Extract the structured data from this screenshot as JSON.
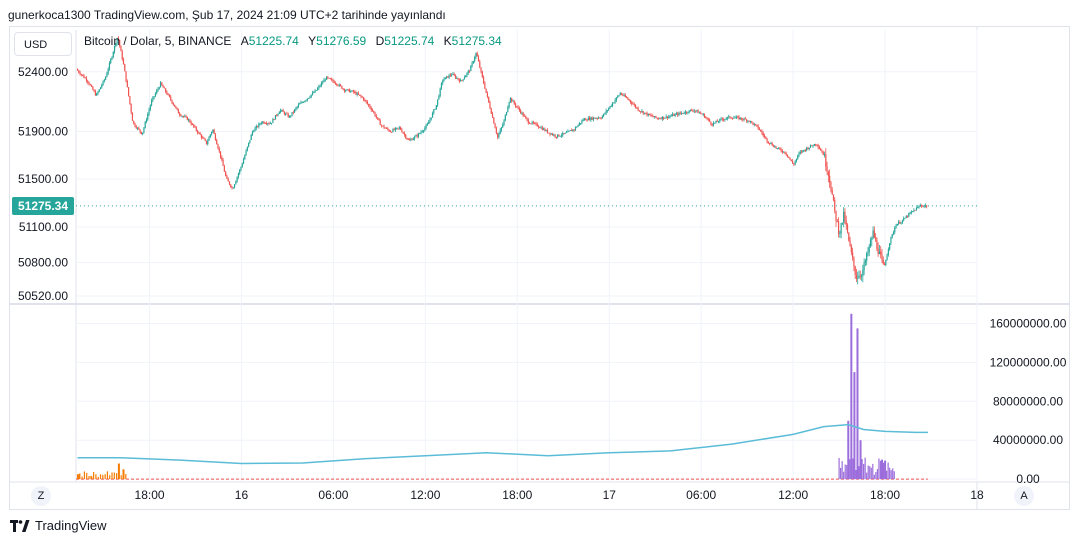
{
  "header": {
    "published_text": "gunerkoca1300 TradingView.com, Şub 17, 2024 21:09 UTC+2 tarihinde yayınlandı"
  },
  "toolbar": {
    "currency_label": "USD",
    "scale_z": "Z",
    "scale_auto": "A"
  },
  "legend": {
    "symbol": "Bitcoin / Dolar, 5, BINANCE",
    "open_label": "A",
    "open_value": "51225.74",
    "high_label": "Y",
    "high_value": "51276.59",
    "low_label": "D",
    "low_value": "51225.74",
    "close_label": "K",
    "close_value": "51275.34"
  },
  "footer": {
    "brand": "TradingView"
  },
  "colors": {
    "up": "#26a69a",
    "down": "#ef5350",
    "volume_ma": "#5bbcd8",
    "volume": "#9c6ddc",
    "volume_early": "#f57c00",
    "last_price_line": "#26a69a"
  },
  "chart_data": [
    {
      "type": "candlestick",
      "title": "",
      "y_ticks": [
        52400,
        51900,
        51500,
        51100,
        50800,
        50520
      ],
      "y_tick_labels": [
        "52400.00",
        "51900.00",
        "51500.00",
        "51100.00",
        "50800.00",
        "50520.00"
      ],
      "ylim": [
        50470,
        52750
      ],
      "last_price": 51275.34,
      "last_price_label": "51275.34",
      "x_tick_labels": [
        "18:00",
        "16",
        "06:00",
        "12:00",
        "18:00",
        "17",
        "06:00",
        "12:00",
        "18:00",
        "18"
      ],
      "x_tick_hours": [
        18,
        24,
        30,
        36,
        42,
        48,
        54,
        60,
        66,
        72
      ],
      "x_range_hours": [
        13.2,
        72
      ],
      "grid": true,
      "price_path": [
        [
          13.3,
          52420
        ],
        [
          14.0,
          52330
        ],
        [
          14.6,
          52200
        ],
        [
          15.2,
          52350
        ],
        [
          15.6,
          52520
        ],
        [
          16.0,
          52700
        ],
        [
          16.4,
          52450
        ],
        [
          17.0,
          51970
        ],
        [
          17.6,
          51880
        ],
        [
          18.2,
          52150
        ],
        [
          18.8,
          52300
        ],
        [
          19.4,
          52180
        ],
        [
          20.0,
          52050
        ],
        [
          20.6,
          52000
        ],
        [
          21.2,
          51900
        ],
        [
          21.8,
          51800
        ],
        [
          22.2,
          51920
        ],
        [
          22.7,
          51700
        ],
        [
          23.1,
          51500
        ],
        [
          23.5,
          51420
        ],
        [
          24.1,
          51620
        ],
        [
          24.8,
          51900
        ],
        [
          25.4,
          51980
        ],
        [
          26.0,
          51970
        ],
        [
          26.6,
          52080
        ],
        [
          27.2,
          52020
        ],
        [
          27.8,
          52120
        ],
        [
          28.4,
          52180
        ],
        [
          29.0,
          52250
        ],
        [
          29.6,
          52350
        ],
        [
          30.2,
          52310
        ],
        [
          30.8,
          52250
        ],
        [
          31.4,
          52230
        ],
        [
          32.0,
          52180
        ],
        [
          32.6,
          52080
        ],
        [
          33.2,
          51950
        ],
        [
          33.8,
          51900
        ],
        [
          34.4,
          51930
        ],
        [
          35.0,
          51820
        ],
        [
          35.6,
          51870
        ],
        [
          36.2,
          51950
        ],
        [
          36.8,
          52120
        ],
        [
          37.2,
          52330
        ],
        [
          37.8,
          52380
        ],
        [
          38.4,
          52320
        ],
        [
          39.0,
          52420
        ],
        [
          39.4,
          52560
        ],
        [
          39.8,
          52350
        ],
        [
          40.3,
          52100
        ],
        [
          40.8,
          51850
        ],
        [
          41.2,
          51980
        ],
        [
          41.6,
          52180
        ],
        [
          42.2,
          52080
        ],
        [
          42.8,
          51980
        ],
        [
          43.4,
          51950
        ],
        [
          44.0,
          51900
        ],
        [
          44.6,
          51860
        ],
        [
          45.2,
          51880
        ],
        [
          45.8,
          51920
        ],
        [
          46.4,
          52000
        ],
        [
          47.0,
          52010
        ],
        [
          47.6,
          52020
        ],
        [
          48.2,
          52120
        ],
        [
          48.8,
          52220
        ],
        [
          49.4,
          52160
        ],
        [
          50.0,
          52080
        ],
        [
          50.6,
          52040
        ],
        [
          51.2,
          52010
        ],
        [
          51.8,
          52020
        ],
        [
          52.4,
          52040
        ],
        [
          53.0,
          52060
        ],
        [
          53.6,
          52080
        ],
        [
          54.2,
          52040
        ],
        [
          54.8,
          51960
        ],
        [
          55.4,
          52000
        ],
        [
          56.0,
          52020
        ],
        [
          56.6,
          52010
        ],
        [
          57.2,
          51990
        ],
        [
          57.8,
          51930
        ],
        [
          58.4,
          51820
        ],
        [
          59.0,
          51760
        ],
        [
          59.6,
          51720
        ],
        [
          60.1,
          51620
        ],
        [
          60.5,
          51720
        ],
        [
          61.0,
          51760
        ],
        [
          61.6,
          51800
        ],
        [
          62.1,
          51700
        ],
        [
          62.5,
          51480
        ],
        [
          62.8,
          51220
        ],
        [
          63.1,
          51050
        ],
        [
          63.4,
          51200
        ],
        [
          63.8,
          50920
        ],
        [
          64.2,
          50680
        ],
        [
          64.6,
          50720
        ],
        [
          65.0,
          50900
        ],
        [
          65.3,
          51050
        ],
        [
          65.6,
          50920
        ],
        [
          66.0,
          50750
        ],
        [
          66.4,
          50980
        ],
        [
          66.8,
          51120
        ],
        [
          67.2,
          51150
        ],
        [
          67.6,
          51200
        ],
        [
          68.0,
          51240
        ],
        [
          68.4,
          51280
        ],
        [
          68.8,
          51275
        ]
      ],
      "price_range_min": 50560,
      "price_range_max": 52750
    },
    {
      "type": "bar",
      "title": "",
      "y_ticks": [
        0,
        40000000,
        80000000,
        120000000,
        160000000
      ],
      "y_tick_labels": [
        "0.00",
        "40000000.00",
        "80000000.00",
        "120000000.00",
        "160000000.00"
      ],
      "ylim": [
        -3000000,
        178000000
      ],
      "volume_spikes": [
        [
          13.4,
          5000000
        ],
        [
          14.2,
          3000000
        ],
        [
          16.0,
          16000000
        ],
        [
          16.3,
          10000000
        ],
        [
          63.6,
          60000000
        ],
        [
          63.8,
          170000000
        ],
        [
          64.0,
          110000000
        ],
        [
          64.2,
          155000000
        ],
        [
          64.4,
          40000000
        ],
        [
          65.8,
          20000000
        ],
        [
          66.0,
          19000000
        ]
      ],
      "volume_ma": [
        [
          13.3,
          22000000
        ],
        [
          16,
          22000000
        ],
        [
          20,
          19500000
        ],
        [
          24,
          16000000
        ],
        [
          28,
          16500000
        ],
        [
          32,
          21000000
        ],
        [
          36,
          24000000
        ],
        [
          40,
          27000000
        ],
        [
          44,
          24000000
        ],
        [
          48,
          27000000
        ],
        [
          52,
          29000000
        ],
        [
          56,
          36000000
        ],
        [
          60,
          46000000
        ],
        [
          62,
          54000000
        ],
        [
          63.6,
          56000000
        ],
        [
          64.6,
          51000000
        ],
        [
          66,
          49000000
        ],
        [
          68,
          48000000
        ],
        [
          68.8,
          48000000
        ]
      ]
    }
  ]
}
